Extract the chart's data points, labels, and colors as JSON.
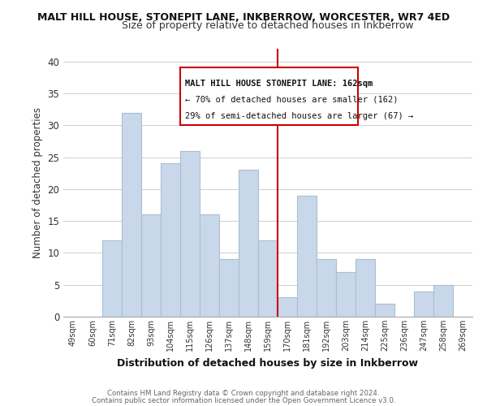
{
  "title": "MALT HILL HOUSE, STONEPIT LANE, INKBERROW, WORCESTER, WR7 4ED",
  "subtitle": "Size of property relative to detached houses in Inkberrow",
  "xlabel": "Distribution of detached houses by size in Inkberrow",
  "ylabel": "Number of detached properties",
  "footer_lines": [
    "Contains HM Land Registry data © Crown copyright and database right 2024.",
    "Contains public sector information licensed under the Open Government Licence v3.0."
  ],
  "categories": [
    "49sqm",
    "60sqm",
    "71sqm",
    "82sqm",
    "93sqm",
    "104sqm",
    "115sqm",
    "126sqm",
    "137sqm",
    "148sqm",
    "159sqm",
    "170sqm",
    "181sqm",
    "192sqm",
    "203sqm",
    "214sqm",
    "225sqm",
    "236sqm",
    "247sqm",
    "258sqm",
    "269sqm"
  ],
  "values": [
    0,
    0,
    12,
    32,
    16,
    24,
    26,
    16,
    9,
    23,
    12,
    3,
    19,
    9,
    7,
    9,
    2,
    0,
    4,
    5,
    0
  ],
  "bar_color": "#c8d8ea",
  "bar_edgecolor": "#aabfd0",
  "vline_x_index": 10,
  "vline_color": "#cc0000",
  "ann_line1": "MALT HILL HOUSE STONEPIT LANE: 162sqm",
  "ann_line2": "← 70% of detached houses are smaller (162)",
  "ann_line3": "29% of semi-detached houses are larger (67) →",
  "ylim": [
    0,
    42
  ],
  "yticks": [
    0,
    5,
    10,
    15,
    20,
    25,
    30,
    35,
    40
  ],
  "background_color": "#ffffff",
  "grid_color": "#d0d0d0"
}
